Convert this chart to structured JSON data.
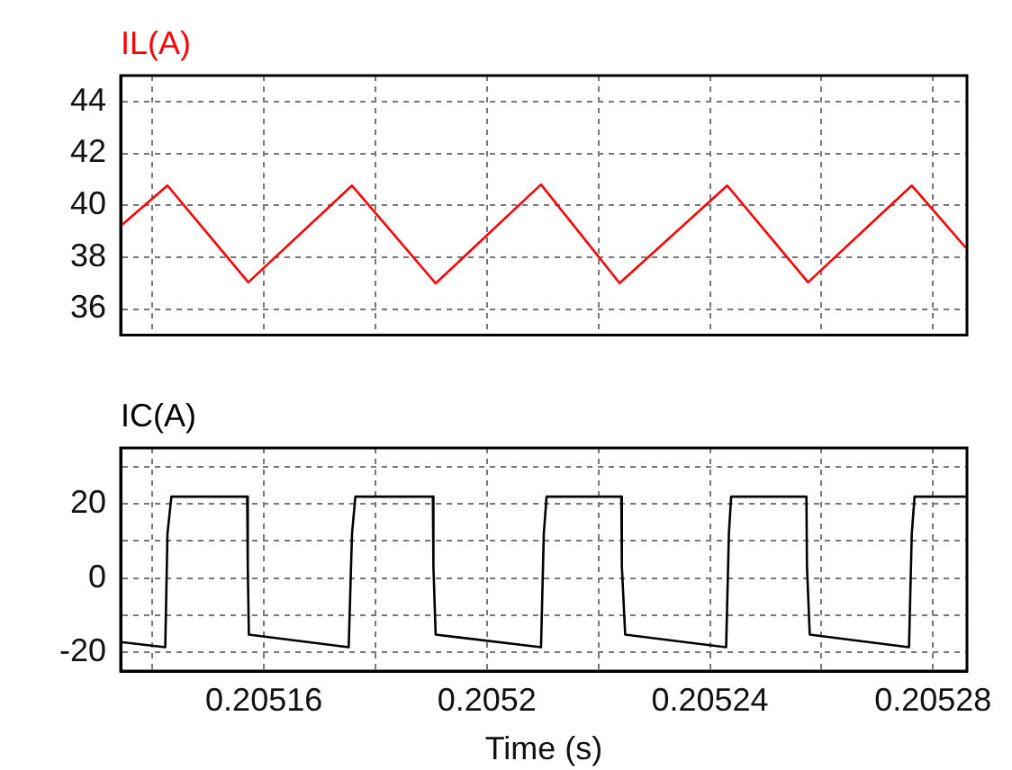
{
  "chart_data": [
    {
      "type": "line",
      "xlim": [
        0.2051343,
        0.2052861
      ],
      "xticks": [
        {
          "value": 0.20514,
          "label": null
        },
        {
          "value": 0.20516,
          "label": null
        },
        {
          "value": 0.20518,
          "label": null
        },
        {
          "value": 0.2052,
          "label": null
        },
        {
          "value": 0.20522,
          "label": null
        },
        {
          "value": 0.20524,
          "label": null
        },
        {
          "value": 0.20526,
          "label": null
        },
        {
          "value": 0.20528,
          "label": null
        }
      ],
      "ylim": [
        35,
        45
      ],
      "yticks": [
        36,
        38,
        40,
        42,
        44
      ],
      "grid": true,
      "tick_labels": "y",
      "marker": "none",
      "series": [
        {
          "name": "IL(A)",
          "color": "#ff0000",
          "x": [
            0.2051343,
            0.2051427,
            0.2051572,
            0.2051758,
            0.2051908,
            0.2052097,
            0.2052238,
            0.2052431,
            0.2052576,
            0.2052762,
            0.2052859
          ],
          "values": [
            39.2,
            40.76,
            37.03,
            40.76,
            36.99,
            40.8,
            37.0,
            40.76,
            37.03,
            40.76,
            38.36
          ]
        }
      ]
    },
    {
      "type": "line",
      "xlim": [
        0.2051343,
        0.2052861
      ],
      "xticks": [
        {
          "value": 0.20514,
          "label": null
        },
        {
          "value": 0.20516,
          "label": "0.20516"
        },
        {
          "value": 0.20518,
          "label": null
        },
        {
          "value": 0.2052,
          "label": "0.2052"
        },
        {
          "value": 0.20522,
          "label": null
        },
        {
          "value": 0.20524,
          "label": "0.20524"
        },
        {
          "value": 0.20526,
          "label": null
        },
        {
          "value": 0.20528,
          "label": "0.20528"
        }
      ],
      "ylim": [
        -25,
        35
      ],
      "yticks": [
        {
          "value": -20,
          "label": "-20"
        },
        {
          "value": -10,
          "label": null
        },
        {
          "value": 0,
          "label": "0"
        },
        {
          "value": 10,
          "label": null
        },
        {
          "value": 20,
          "label": "20"
        },
        {
          "value": 30,
          "label": null
        }
      ],
      "grid": true,
      "marker": "none",
      "xlabel": "Time (s)",
      "series": [
        {
          "name": "IC(A)",
          "color": "#000000",
          "x": [
            0.2051343,
            0.2051423,
            0.2051427,
            0.2051434,
            0.205157,
            0.2051571,
            0.2051573,
            0.2051752,
            0.2051758,
            0.2051764,
            0.2051903,
            0.2051904,
            0.2051908,
            0.2052097,
            0.2052102,
            0.2052107,
            0.2052241,
            0.2052242,
            0.2052248,
            0.2052429,
            0.2052434,
            0.2052438,
            0.2052573,
            0.2052574,
            0.2052579,
            0.2052757,
            0.2052762,
            0.2052767,
            0.2052859
          ],
          "values": [
            -17.2,
            -18.6,
            12,
            21.9,
            21.9,
            3.1,
            -15.2,
            -18.6,
            12,
            21.9,
            21.9,
            3.1,
            -15.2,
            -18.6,
            12,
            21.9,
            21.9,
            3.1,
            -15.2,
            -18.6,
            12,
            21.9,
            21.9,
            3.1,
            -15.2,
            -18.6,
            12,
            21.9,
            21.9
          ]
        }
      ]
    }
  ]
}
